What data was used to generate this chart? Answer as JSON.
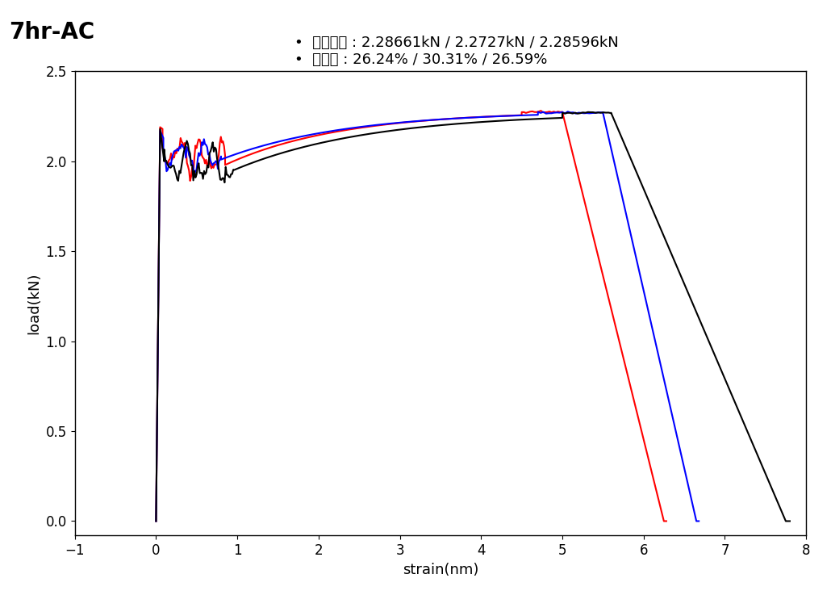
{
  "title": "7hr-AC",
  "xlabel": "strain(nm)",
  "ylabel": "load(kN)",
  "xlim": [
    -1,
    8
  ],
  "ylim": [
    -0.08,
    2.5
  ],
  "xticks": [
    -1,
    0,
    1,
    2,
    3,
    4,
    5,
    6,
    7,
    8
  ],
  "yticks": [
    0.0,
    0.5,
    1.0,
    1.5,
    2.0,
    2.5
  ],
  "legend_line1": "•  인장강도 : 2.28661kN / 2.2727kN / 2.28596kN",
  "legend_line2": "•  연신률 : 26.24% / 30.31% / 26.59%",
  "bg_color": "#ffffff",
  "line_colors": [
    "red",
    "blue",
    "black"
  ],
  "title_fontsize": 20,
  "axis_fontsize": 13,
  "tick_fontsize": 12,
  "legend_fontsize": 13,
  "linewidth": 1.5
}
